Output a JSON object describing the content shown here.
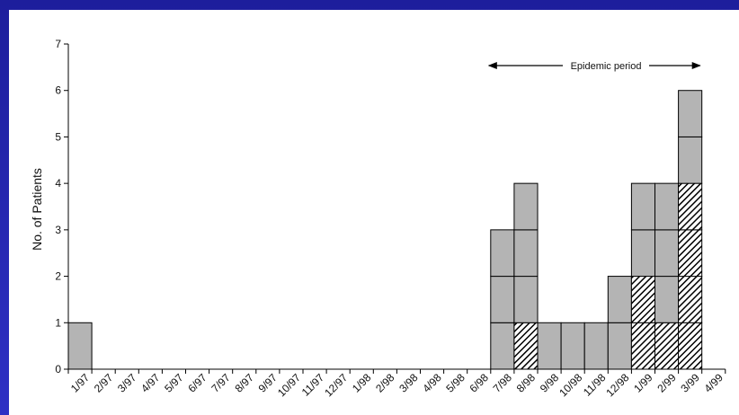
{
  "colors": {
    "background": "#2a2bb8",
    "panel": "#ffffff",
    "bar_fill": "#b4b4b4",
    "stroke": "#000000"
  },
  "chart_data": {
    "type": "bar",
    "stacked_unit_boxes": true,
    "title": "",
    "xlabel": "",
    "ylabel": "No. of Patients",
    "ylim": [
      0,
      7
    ],
    "yticks": [
      0,
      1,
      2,
      3,
      4,
      5,
      6,
      7
    ],
    "categories": [
      "1/97",
      "2/97",
      "3/97",
      "4/97",
      "5/97",
      "6/97",
      "7/97",
      "8/97",
      "9/97",
      "10/97",
      "11/97",
      "12/97",
      "1/98",
      "2/98",
      "3/98",
      "4/98",
      "5/98",
      "6/98",
      "7/98",
      "8/98",
      "9/98",
      "10/98",
      "11/98",
      "12/98",
      "1/99",
      "2/99",
      "3/99",
      "4/99"
    ],
    "series": [
      {
        "pattern": "hatched",
        "values": [
          0,
          0,
          0,
          0,
          0,
          0,
          0,
          0,
          0,
          0,
          0,
          0,
          0,
          0,
          0,
          0,
          0,
          0,
          0,
          1,
          0,
          0,
          0,
          0,
          2,
          1,
          4,
          0
        ]
      },
      {
        "pattern": "solid",
        "values": [
          1,
          0,
          0,
          0,
          0,
          0,
          0,
          0,
          0,
          0,
          0,
          0,
          0,
          0,
          0,
          0,
          0,
          0,
          3,
          3,
          1,
          1,
          1,
          2,
          2,
          3,
          2,
          0
        ]
      }
    ],
    "grid": false,
    "annotation": {
      "text": "Epidemic period",
      "from_category": "7/98",
      "to_category": "3/99"
    }
  }
}
